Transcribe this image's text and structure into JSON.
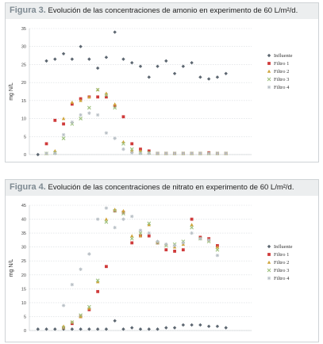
{
  "chart_data": [
    {
      "type": "scatter",
      "label_prefix": "Figura 3.",
      "title": "Evolución de las concentraciones de amonio en experimento de 60 L/m²/d.",
      "ylabel": "mg N/L",
      "ylim": [
        0,
        35
      ],
      "yticks": [
        0,
        5,
        10,
        15,
        20,
        25,
        30,
        35
      ],
      "xlim": [
        0,
        26
      ],
      "grid": true,
      "legend": "right",
      "series": [
        {
          "name": "Influente",
          "color": "#5c6670",
          "points": [
            [
              1,
              0
            ],
            [
              2,
              26
            ],
            [
              3,
              26.5
            ],
            [
              4,
              28
            ],
            [
              5,
              26.5
            ],
            [
              6,
              30
            ],
            [
              7,
              26.5
            ],
            [
              8,
              24
            ],
            [
              9,
              27
            ],
            [
              10,
              34
            ],
            [
              11,
              26.5
            ],
            [
              12,
              25.5
            ],
            [
              13,
              24.5
            ],
            [
              14,
              21.5
            ],
            [
              15,
              24.5
            ],
            [
              16,
              26
            ],
            [
              17,
              22.5
            ],
            [
              18,
              24.5
            ],
            [
              19,
              25.5
            ],
            [
              20,
              21.5
            ],
            [
              21,
              21
            ],
            [
              22,
              21.5
            ],
            [
              23,
              22.5
            ]
          ]
        },
        {
          "name": "Filtro 1",
          "color": "#cf3a3a",
          "points": [
            [
              2,
              3
            ],
            [
              3,
              9.5
            ],
            [
              4,
              8.5
            ],
            [
              5,
              14
            ],
            [
              6,
              15.5
            ],
            [
              7,
              16
            ],
            [
              8,
              16
            ],
            [
              9,
              16
            ],
            [
              10,
              13.5
            ],
            [
              11,
              10.5
            ],
            [
              12,
              3
            ],
            [
              13,
              1.5
            ],
            [
              14,
              1
            ],
            [
              15,
              0.3
            ],
            [
              16,
              0.3
            ],
            [
              17,
              0.3
            ],
            [
              18,
              0.3
            ],
            [
              19,
              0.3
            ],
            [
              20,
              0.3
            ],
            [
              21,
              0.5
            ],
            [
              22,
              0.3
            ],
            [
              23,
              0.3
            ]
          ]
        },
        {
          "name": "Filtro 2",
          "color": "#cfa43a",
          "points": [
            [
              2,
              0.3
            ],
            [
              3,
              1
            ],
            [
              4,
              10
            ],
            [
              5,
              14.5
            ],
            [
              6,
              15
            ],
            [
              7,
              16
            ],
            [
              8,
              18
            ],
            [
              9,
              17
            ],
            [
              10,
              14
            ],
            [
              11,
              3.5
            ],
            [
              12,
              1
            ],
            [
              13,
              1
            ],
            [
              14,
              0.5
            ],
            [
              15,
              0.3
            ],
            [
              16,
              0.3
            ],
            [
              17,
              0.3
            ],
            [
              18,
              0.3
            ],
            [
              19,
              0.3
            ],
            [
              20,
              0.3
            ],
            [
              21,
              0.3
            ],
            [
              22,
              0.3
            ],
            [
              23,
              0.3
            ]
          ]
        },
        {
          "name": "Filtro 3",
          "color": "#9ec17e",
          "points": [
            [
              2,
              0.3
            ],
            [
              3,
              0.5
            ],
            [
              4,
              4.5
            ],
            [
              5,
              8.5
            ],
            [
              6,
              10
            ],
            [
              7,
              13
            ],
            [
              8,
              18
            ],
            [
              9,
              16.5
            ],
            [
              10,
              13
            ],
            [
              11,
              3
            ],
            [
              12,
              1.5
            ],
            [
              13,
              0.5
            ],
            [
              14,
              0.5
            ],
            [
              15,
              0.3
            ],
            [
              16,
              0.3
            ],
            [
              17,
              0.3
            ],
            [
              18,
              0.3
            ],
            [
              19,
              0.3
            ],
            [
              20,
              0.3
            ],
            [
              21,
              0.3
            ],
            [
              22,
              0.3
            ],
            [
              23,
              0.3
            ]
          ]
        },
        {
          "name": "Filtro 4",
          "color": "#b9c0c6",
          "points": [
            [
              2,
              0.3
            ],
            [
              3,
              0.3
            ],
            [
              4,
              5.5
            ],
            [
              5,
              9
            ],
            [
              6,
              11
            ],
            [
              7,
              11.5
            ],
            [
              8,
              11
            ],
            [
              9,
              6
            ],
            [
              10,
              4.5
            ],
            [
              11,
              1.5
            ],
            [
              12,
              0.5
            ],
            [
              13,
              0.3
            ],
            [
              14,
              0.3
            ],
            [
              15,
              0.3
            ],
            [
              16,
              0.3
            ],
            [
              17,
              0.3
            ],
            [
              18,
              0.3
            ],
            [
              19,
              0.3
            ],
            [
              20,
              0.3
            ],
            [
              21,
              0.3
            ],
            [
              22,
              0.3
            ],
            [
              23,
              0.3
            ]
          ]
        }
      ]
    },
    {
      "type": "scatter",
      "label_prefix": "Figura 4.",
      "title": "Evolución de las concentraciones de nitrato en experimento de 60 L/m²/d.",
      "ylabel": "mg N/L",
      "ylim": [
        0,
        45
      ],
      "yticks": [
        0,
        5,
        10,
        15,
        20,
        25,
        30,
        35,
        40,
        45
      ],
      "xlim": [
        0,
        26
      ],
      "grid": true,
      "legend": "right",
      "series": [
        {
          "name": "Influente",
          "color": "#5c6670",
          "points": [
            [
              1,
              0.5
            ],
            [
              2,
              0.5
            ],
            [
              3,
              0.5
            ],
            [
              4,
              0.5
            ],
            [
              5,
              0.5
            ],
            [
              6,
              0.5
            ],
            [
              7,
              0.5
            ],
            [
              8,
              0.5
            ],
            [
              9,
              0.5
            ],
            [
              10,
              3.5
            ],
            [
              11,
              0.5
            ],
            [
              12,
              1
            ],
            [
              13,
              0.5
            ],
            [
              14,
              0.5
            ],
            [
              15,
              0.5
            ],
            [
              16,
              1
            ],
            [
              17,
              1
            ],
            [
              18,
              2
            ],
            [
              19,
              2
            ],
            [
              20,
              2
            ],
            [
              21,
              1.5
            ],
            [
              22,
              1.5
            ],
            [
              23,
              1
            ]
          ]
        },
        {
          "name": "Filtro 1",
          "color": "#cf3a3a",
          "points": [
            [
              4,
              1
            ],
            [
              5,
              2.5
            ],
            [
              6,
              5
            ],
            [
              7,
              7.5
            ],
            [
              8,
              14
            ],
            [
              9,
              23
            ],
            [
              10,
              43
            ],
            [
              11,
              42.5
            ],
            [
              12,
              31.5
            ],
            [
              13,
              34
            ],
            [
              14,
              34
            ],
            [
              15,
              31.5
            ],
            [
              16,
              29
            ],
            [
              17,
              28.5
            ],
            [
              18,
              29
            ],
            [
              19,
              40
            ],
            [
              20,
              33.5
            ],
            [
              21,
              33
            ],
            [
              22,
              30.5
            ]
          ]
        },
        {
          "name": "Filtro 2",
          "color": "#cfa43a",
          "points": [
            [
              4,
              1.5
            ],
            [
              5,
              3
            ],
            [
              6,
              5
            ],
            [
              7,
              8
            ],
            [
              8,
              17.5
            ],
            [
              9,
              40
            ],
            [
              10,
              43.5
            ],
            [
              11,
              43
            ],
            [
              12,
              34
            ],
            [
              13,
              34
            ],
            [
              14,
              38
            ],
            [
              15,
              32
            ],
            [
              16,
              31
            ],
            [
              17,
              30
            ],
            [
              18,
              31
            ],
            [
              19,
              38
            ],
            [
              20,
              33
            ],
            [
              21,
              32.5
            ],
            [
              22,
              30
            ]
          ]
        },
        {
          "name": "Filtro 3",
          "color": "#9ec17e",
          "points": [
            [
              4,
              1
            ],
            [
              5,
              3
            ],
            [
              6,
              5.5
            ],
            [
              7,
              8.5
            ],
            [
              8,
              18
            ],
            [
              9,
              39
            ],
            [
              10,
              43
            ],
            [
              11,
              42
            ],
            [
              12,
              33
            ],
            [
              13,
              35
            ],
            [
              14,
              38.5
            ],
            [
              15,
              31.5
            ],
            [
              16,
              30.5
            ],
            [
              17,
              31
            ],
            [
              18,
              32
            ],
            [
              19,
              37
            ],
            [
              20,
              33
            ],
            [
              21,
              32
            ],
            [
              22,
              29
            ]
          ]
        },
        {
          "name": "Filtro 4",
          "color": "#b9c0c6",
          "points": [
            [
              4,
              9
            ],
            [
              5,
              16.5
            ],
            [
              6,
              22
            ],
            [
              7,
              27.5
            ],
            [
              8,
              40
            ],
            [
              9,
              44
            ],
            [
              10,
              37
            ],
            [
              11,
              40
            ],
            [
              12,
              41
            ],
            [
              13,
              36
            ],
            [
              14,
              35
            ],
            [
              15,
              32
            ],
            [
              16,
              31
            ],
            [
              17,
              30.5
            ],
            [
              18,
              31.5
            ],
            [
              19,
              35
            ],
            [
              20,
              33
            ],
            [
              21,
              32.5
            ],
            [
              22,
              27
            ]
          ]
        }
      ]
    }
  ]
}
